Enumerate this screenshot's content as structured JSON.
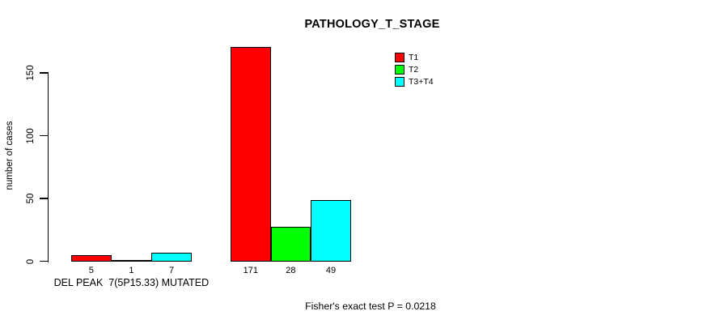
{
  "chart_data": {
    "type": "bar",
    "title": "PATHOLOGY_T_STAGE",
    "xlabel": "",
    "ylabel": "number of cases",
    "ylim": [
      0,
      150
    ],
    "yticks": [
      0,
      50,
      100,
      150
    ],
    "grid": false,
    "legend_position": "top-right",
    "categories": [
      "DEL PEAK  7(5P15.33) MUTATED",
      ""
    ],
    "series": [
      {
        "name": "T1",
        "color": "#ff0000",
        "values": [
          5,
          171
        ]
      },
      {
        "name": "T2",
        "color": "#00ff00",
        "values": [
          1,
          28
        ]
      },
      {
        "name": "T3+T4",
        "color": "#00ffff",
        "values": [
          7,
          49
        ]
      }
    ],
    "bar_value_labels": [
      [
        "5",
        "1",
        "7"
      ],
      [
        "171",
        "28",
        "49"
      ]
    ],
    "annotation": "Fisher's exact test P = 0.0218"
  }
}
